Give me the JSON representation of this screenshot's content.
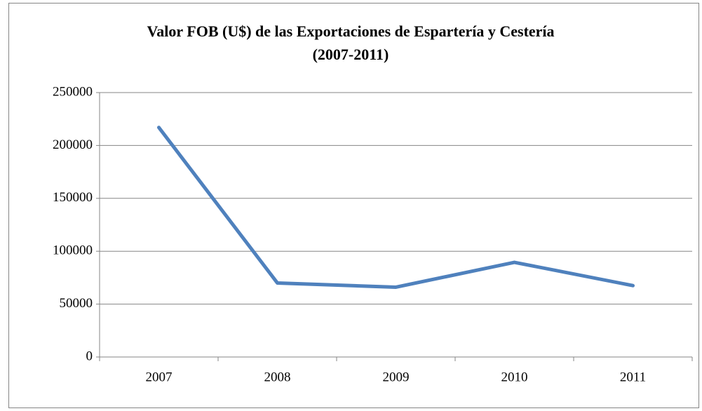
{
  "chart_data": {
    "type": "line",
    "title": [
      "Valor FOB (U$) de las Exportaciones de Espartería y Cestería",
      "(2007-2011)"
    ],
    "categories": [
      "2007",
      "2008",
      "2009",
      "2010",
      "2011"
    ],
    "series": [
      {
        "name": "Valor FOB",
        "color": "#4f81bd",
        "values": [
          217000,
          70000,
          66000,
          89500,
          67500
        ]
      }
    ],
    "ylim": [
      0,
      250000
    ],
    "yticks": [
      0,
      50000,
      100000,
      150000,
      200000,
      250000
    ],
    "grid": true
  }
}
